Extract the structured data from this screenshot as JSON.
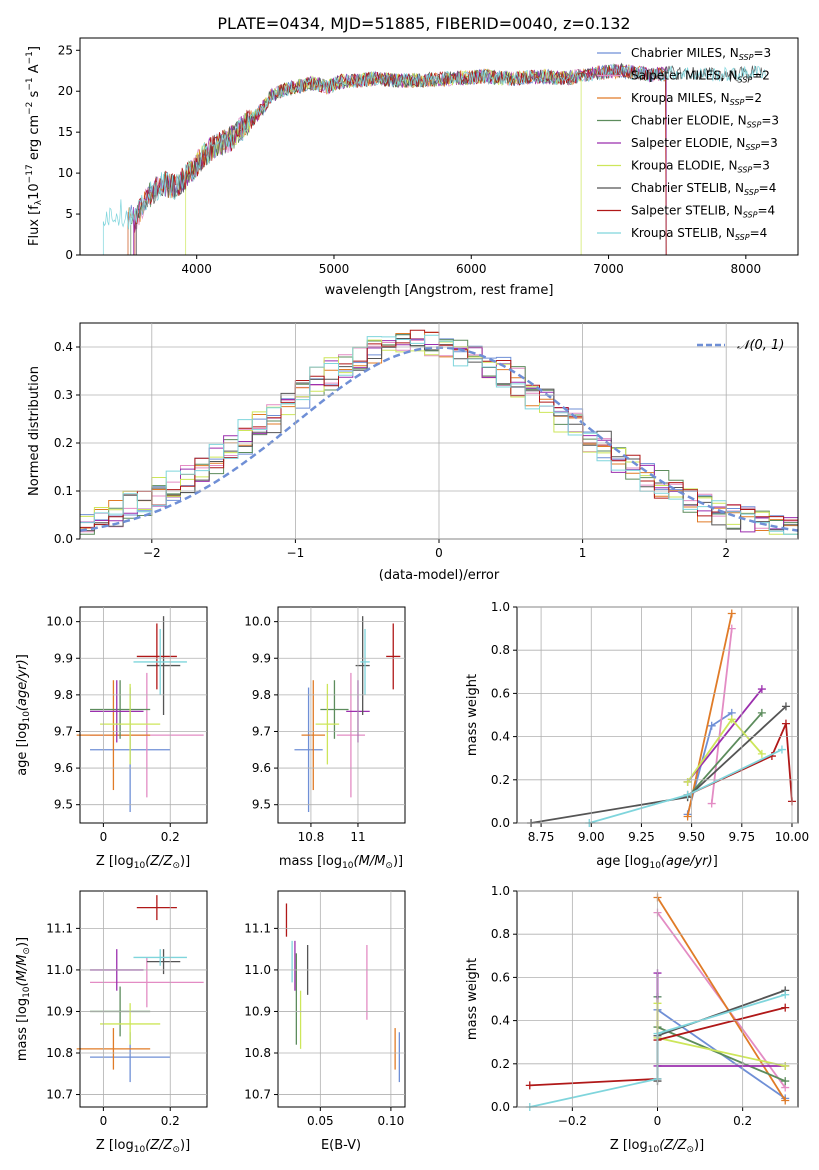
{
  "figure": {
    "title": "PLATE=0434, MJD=51885, FIBERID=0040, z=0.132"
  },
  "models": [
    {
      "name": "Chabrier MILES",
      "nssp": "3",
      "color": "#6f8fd6"
    },
    {
      "name": "Salpeter MILES",
      "nssp": "2",
      "color": "#e38cc4"
    },
    {
      "name": "Kroupa MILES",
      "nssp": "2",
      "color": "#e07b27"
    },
    {
      "name": "Chabrier ELODIE",
      "nssp": "3",
      "color": "#5c8c5c"
    },
    {
      "name": "Salpeter ELODIE",
      "nssp": "3",
      "color": "#9b2fae"
    },
    {
      "name": "Kroupa ELODIE",
      "nssp": "3",
      "color": "#cde65a"
    },
    {
      "name": "Chabrier STELIB",
      "nssp": "4",
      "color": "#555555"
    },
    {
      "name": "Salpeter STELIB",
      "nssp": "4",
      "color": "#b01818"
    },
    {
      "name": "Kroupa STELIB",
      "nssp": "4",
      "color": "#7fd5dc"
    }
  ],
  "chart_data": [
    {
      "id": "spectrum",
      "type": "line",
      "xlabel": "wavelength [Angstrom, rest frame]",
      "ylabel": "Flux [f_λ 10^-17 erg cm^-2 s^-1 A^-1]",
      "xlim": [
        3150,
        8380
      ],
      "ylim": [
        0,
        26.5
      ],
      "xticks": [
        4000,
        5000,
        6000,
        7000,
        8000
      ],
      "yticks": [
        0,
        5,
        10,
        15,
        20,
        25
      ],
      "grid": false,
      "legend": "top-right",
      "series_profile": {
        "x": [
          3350,
          3450,
          3550,
          3650,
          3750,
          3850,
          3950,
          4050,
          4150,
          4250,
          4350,
          4450,
          4550,
          4650,
          4750,
          4850,
          4950,
          5050,
          5150,
          5300,
          5500,
          5700,
          5900,
          6100,
          6300,
          6500,
          6700,
          6900,
          7100,
          7300,
          7500,
          7700,
          7900,
          8100
        ],
        "y": [
          5.0,
          5.2,
          4.3,
          7.2,
          8.8,
          8.3,
          10.0,
          12.2,
          13.4,
          14.2,
          15.8,
          17.2,
          19.6,
          20.2,
          20.6,
          21.0,
          20.5,
          21.2,
          21.3,
          21.5,
          21.3,
          21.4,
          21.6,
          21.8,
          21.5,
          21.8,
          21.6,
          22.2,
          22.5,
          22.0,
          22.3,
          22.1,
          22.0,
          22.4
        ],
        "model_ranges": [
          [
            3500,
            7420
          ],
          [
            3500,
            7420
          ],
          [
            3500,
            7420
          ],
          [
            3520,
            7420
          ],
          [
            3540,
            7420
          ],
          [
            3920,
            6800
          ],
          [
            3560,
            8120
          ],
          [
            3550,
            7420
          ],
          [
            3320,
            8150
          ]
        ]
      }
    },
    {
      "id": "residual-histogram",
      "type": "histogram",
      "xlabel": "(data-model)/error",
      "ylabel": "Normed distribution",
      "xlim": [
        -2.5,
        2.5
      ],
      "ylim": [
        0,
        0.45
      ],
      "xticks": [
        -2,
        -1,
        0,
        1,
        2
      ],
      "yticks": [
        0.0,
        0.1,
        0.2,
        0.3,
        0.4
      ],
      "grid": true,
      "legend": "top-right",
      "reference_label": "𝒩(0, 1)",
      "bin_width": 0.1
    },
    {
      "id": "age-vs-Z",
      "type": "scatter",
      "xlabel": "Z [log10(Z/Z⊙)]",
      "ylabel": "age [log10(age/yr)]",
      "xlim": [
        -0.07,
        0.31
      ],
      "ylim": [
        9.45,
        10.04
      ],
      "xticks": [
        0.0,
        0.2
      ],
      "yticks": [
        9.5,
        9.6,
        9.7,
        9.8,
        9.9,
        10.0
      ],
      "points": [
        {
          "x": 0.08,
          "y": 9.65,
          "xerr": 0.12,
          "yerr": 0.17
        },
        {
          "x": 0.13,
          "y": 9.69,
          "xerr": 0.17,
          "yerr": 0.17
        },
        {
          "x": 0.03,
          "y": 9.69,
          "xerr": 0.11,
          "yerr": 0.15
        },
        {
          "x": 0.05,
          "y": 9.76,
          "xerr": 0.09,
          "yerr": 0.08
        },
        {
          "x": 0.04,
          "y": 9.755,
          "xerr": 0.08,
          "yerr": 0.085
        },
        {
          "x": 0.08,
          "y": 9.72,
          "xerr": 0.09,
          "yerr": 0.11
        },
        {
          "x": 0.18,
          "y": 9.88,
          "xerr": 0.05,
          "yerr": 0.135
        },
        {
          "x": 0.16,
          "y": 9.905,
          "xerr": 0.06,
          "yerr": 0.09
        },
        {
          "x": 0.17,
          "y": 9.89,
          "xerr": 0.08,
          "yerr": 0.09
        }
      ]
    },
    {
      "id": "age-vs-mass",
      "type": "scatter",
      "xlabel": "mass [log10(M/M⊙)]",
      "ylabel": "",
      "xlim": [
        10.66,
        11.2
      ],
      "ylim": [
        9.45,
        10.04
      ],
      "xticks": [
        10.8,
        11.0
      ],
      "yticks": [
        9.5,
        9.6,
        9.7,
        9.8,
        9.9,
        10.0
      ],
      "points": [
        {
          "x": 10.79,
          "y": 9.65,
          "xerr": 0.06,
          "yerr": 0.17
        },
        {
          "x": 10.97,
          "y": 9.69,
          "xerr": 0.06,
          "yerr": 0.17
        },
        {
          "x": 10.81,
          "y": 9.69,
          "xerr": 0.05,
          "yerr": 0.15
        },
        {
          "x": 10.9,
          "y": 9.76,
          "xerr": 0.06,
          "yerr": 0.08
        },
        {
          "x": 11.0,
          "y": 9.755,
          "xerr": 0.05,
          "yerr": 0.085
        },
        {
          "x": 10.87,
          "y": 9.72,
          "xerr": 0.05,
          "yerr": 0.11
        },
        {
          "x": 11.02,
          "y": 9.88,
          "xerr": 0.03,
          "yerr": 0.135
        },
        {
          "x": 11.15,
          "y": 9.905,
          "xerr": 0.03,
          "yerr": 0.09
        },
        {
          "x": 11.03,
          "y": 9.89,
          "xerr": 0.02,
          "yerr": 0.09
        }
      ]
    },
    {
      "id": "massweight-vs-age",
      "type": "line",
      "xlabel": "age [log10(age/yr)]",
      "ylabel": "mass weight",
      "xlim": [
        8.63,
        10.03
      ],
      "ylim": [
        0,
        1.0
      ],
      "xticks": [
        8.75,
        9.0,
        9.25,
        9.5,
        9.75,
        10.0
      ],
      "xtick_labels": [
        "8.75",
        "9.00",
        "9.25",
        "9.50",
        "9.75",
        "10.00"
      ],
      "yticks": [
        0.0,
        0.2,
        0.4,
        0.6,
        0.8,
        1.0
      ],
      "grid": true,
      "series": [
        [
          [
            9.48,
            0.04
          ],
          [
            9.6,
            0.45
          ],
          [
            9.7,
            0.51
          ]
        ],
        [
          [
            9.6,
            0.09
          ],
          [
            9.7,
            0.9
          ]
        ],
        [
          [
            9.48,
            0.03
          ],
          [
            9.7,
            0.97
          ]
        ],
        [
          [
            9.48,
            0.12
          ],
          [
            9.85,
            0.51
          ]
        ],
        [
          [
            9.48,
            0.19
          ],
          [
            9.85,
            0.62
          ]
        ],
        [
          [
            9.48,
            0.19
          ],
          [
            9.7,
            0.48
          ],
          [
            9.85,
            0.32
          ]
        ],
        [
          [
            8.7,
            0.0
          ],
          [
            9.48,
            0.12
          ],
          [
            9.97,
            0.54
          ]
        ],
        [
          [
            9.48,
            0.13
          ],
          [
            9.9,
            0.31
          ],
          [
            9.97,
            0.46
          ],
          [
            10.0,
            0.1
          ]
        ],
        [
          [
            8.99,
            0.0
          ],
          [
            9.48,
            0.13
          ],
          [
            9.95,
            0.34
          ]
        ]
      ]
    },
    {
      "id": "mass-vs-Z",
      "type": "scatter",
      "xlabel": "Z [log10(Z/Z⊙)]",
      "ylabel": "mass [log10(M/M⊙)]",
      "xlim": [
        -0.07,
        0.31
      ],
      "ylim": [
        10.67,
        11.19
      ],
      "xticks": [
        0.0,
        0.2
      ],
      "yticks": [
        10.7,
        10.8,
        10.9,
        11.0,
        11.1
      ],
      "points": [
        {
          "x": 0.08,
          "y": 10.79,
          "xerr": 0.12,
          "yerr": 0.06
        },
        {
          "x": 0.13,
          "y": 10.97,
          "xerr": 0.17,
          "yerr": 0.06
        },
        {
          "x": 0.03,
          "y": 10.81,
          "xerr": 0.11,
          "yerr": 0.05
        },
        {
          "x": 0.05,
          "y": 10.9,
          "xerr": 0.09,
          "yerr": 0.06
        },
        {
          "x": 0.04,
          "y": 11.0,
          "xerr": 0.08,
          "yerr": 0.05
        },
        {
          "x": 0.08,
          "y": 10.87,
          "xerr": 0.09,
          "yerr": 0.05
        },
        {
          "x": 0.18,
          "y": 11.02,
          "xerr": 0.05,
          "yerr": 0.03
        },
        {
          "x": 0.16,
          "y": 11.15,
          "xerr": 0.06,
          "yerr": 0.03
        },
        {
          "x": 0.17,
          "y": 11.03,
          "xerr": 0.08,
          "yerr": 0.02
        }
      ]
    },
    {
      "id": "mass-vs-ebv",
      "type": "scatter",
      "xlabel": "E(B-V)",
      "ylabel": "",
      "xlim": [
        0.02,
        0.11
      ],
      "ylim": [
        10.67,
        11.19
      ],
      "xticks": [
        0.05,
        0.1
      ],
      "xtick_labels": [
        "0.05",
        "0.10"
      ],
      "yticks": [
        10.7,
        10.8,
        10.9,
        11.0,
        11.1
      ],
      "points": [
        {
          "x": 0.106,
          "y": 10.79,
          "yerr": 0.06
        },
        {
          "x": 0.083,
          "y": 10.97,
          "yerr": 0.09
        },
        {
          "x": 0.103,
          "y": 10.81,
          "yerr": 0.05
        },
        {
          "x": 0.033,
          "y": 10.93,
          "yerr": 0.11
        },
        {
          "x": 0.032,
          "y": 11.01,
          "yerr": 0.06
        },
        {
          "x": 0.036,
          "y": 10.88,
          "yerr": 0.07
        },
        {
          "x": 0.041,
          "y": 11.0,
          "yerr": 0.06
        },
        {
          "x": 0.026,
          "y": 11.12,
          "yerr": 0.04
        },
        {
          "x": 0.03,
          "y": 11.02,
          "yerr": 0.05
        }
      ]
    },
    {
      "id": "massweight-vs-Z",
      "type": "line",
      "xlabel": "Z [log10(Z/Z⊙)]",
      "ylabel": "mass weight",
      "xlim": [
        -0.33,
        0.33
      ],
      "ylim": [
        0,
        1.0
      ],
      "xticks": [
        -0.2,
        0.0,
        0.2
      ],
      "yticks": [
        0.0,
        0.2,
        0.4,
        0.6,
        0.8,
        1.0
      ],
      "grid": true,
      "series": [
        [
          [
            0.0,
            0.51
          ],
          [
            0.0,
            0.45
          ],
          [
            0.3,
            0.04
          ]
        ],
        [
          [
            0.0,
            0.9
          ],
          [
            0.3,
            0.09
          ]
        ],
        [
          [
            0.0,
            0.97
          ],
          [
            0.3,
            0.03
          ]
        ],
        [
          [
            0.0,
            0.51
          ],
          [
            0.0,
            0.37
          ],
          [
            0.3,
            0.12
          ]
        ],
        [
          [
            0.0,
            0.62
          ],
          [
            0.0,
            0.19
          ],
          [
            0.3,
            0.19
          ]
        ],
        [
          [
            0.0,
            0.48
          ],
          [
            0.0,
            0.32
          ],
          [
            0.3,
            0.19
          ]
        ],
        [
          [
            0.0,
            0.12
          ],
          [
            0.0,
            0.33
          ],
          [
            0.3,
            0.54
          ]
        ],
        [
          [
            -0.3,
            0.1
          ],
          [
            0.0,
            0.13
          ],
          [
            0.0,
            0.31
          ],
          [
            0.3,
            0.46
          ]
        ],
        [
          [
            -0.3,
            0.0
          ],
          [
            0.0,
            0.13
          ],
          [
            0.0,
            0.34
          ],
          [
            0.3,
            0.52
          ]
        ]
      ]
    }
  ]
}
